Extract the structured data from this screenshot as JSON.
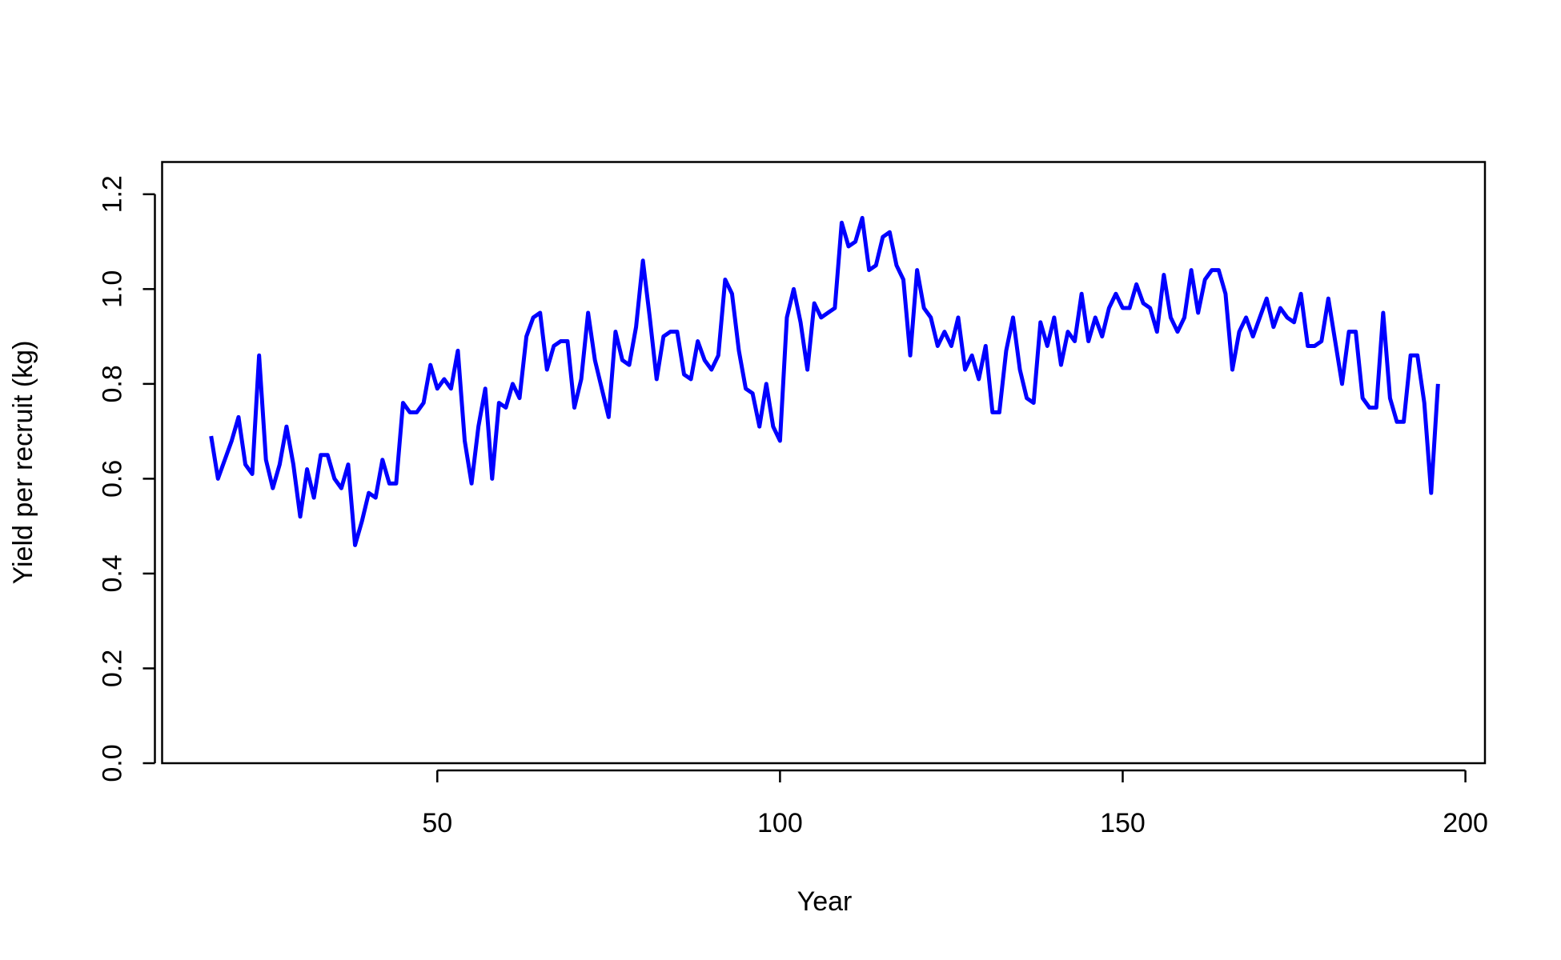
{
  "chart_data": {
    "type": "line",
    "x_label": "Year",
    "y_label": "Yield per recruit (kg)",
    "xlim": [
      9.85,
      202.85
    ],
    "ylim": [
      0,
      1.268
    ],
    "xticks": [
      50,
      100,
      150,
      200
    ],
    "yticks": [
      {
        "value": 0,
        "label": "0.0"
      },
      0.2,
      0.4,
      0.6,
      0.8,
      {
        "value": 1,
        "label": "1.0"
      },
      1.2
    ],
    "x": [
      17,
      18,
      19,
      20,
      21,
      22,
      23,
      24,
      25,
      26,
      27,
      28,
      29,
      30,
      31,
      32,
      33,
      34,
      35,
      36,
      37,
      38,
      39,
      40,
      41,
      42,
      43,
      44,
      45,
      46,
      47,
      48,
      49,
      50,
      51,
      52,
      53,
      54,
      55,
      56,
      57,
      58,
      59,
      60,
      61,
      62,
      63,
      64,
      65,
      66,
      67,
      68,
      69,
      70,
      71,
      72,
      73,
      74,
      75,
      76,
      77,
      78,
      79,
      80,
      81,
      82,
      83,
      84,
      85,
      86,
      87,
      88,
      89,
      90,
      91,
      92,
      93,
      94,
      95,
      96,
      97,
      98,
      99,
      100,
      101,
      102,
      103,
      104,
      105,
      106,
      107,
      108,
      109,
      110,
      111,
      112,
      113,
      114,
      115,
      116,
      117,
      118,
      119,
      120,
      121,
      122,
      123,
      124,
      125,
      126,
      127,
      128,
      129,
      130,
      131,
      132,
      133,
      134,
      135,
      136,
      137,
      138,
      139,
      140,
      141,
      142,
      143,
      144,
      145,
      146,
      147,
      148,
      149,
      150,
      151,
      152,
      153,
      154,
      155,
      156,
      157,
      158,
      159,
      160,
      161,
      162,
      163,
      164,
      165,
      166,
      167,
      168,
      169,
      170,
      171,
      172,
      173,
      174,
      175,
      176,
      177,
      178,
      179,
      180,
      181,
      182,
      183,
      184,
      185,
      186,
      187,
      188,
      189,
      190,
      191,
      192,
      193,
      194,
      195,
      196
    ],
    "series": [
      {
        "color": "#0000ff",
        "values": [
          0.69,
          0.6,
          0.64,
          0.68,
          0.73,
          0.63,
          0.61,
          0.86,
          0.64,
          0.58,
          0.63,
          0.71,
          0.63,
          0.52,
          0.62,
          0.56,
          0.65,
          0.65,
          0.6,
          0.58,
          0.63,
          0.46,
          0.51,
          0.57,
          0.56,
          0.64,
          0.59,
          0.59,
          0.76,
          0.74,
          0.74,
          0.76,
          0.84,
          0.79,
          0.81,
          0.79,
          0.87,
          0.68,
          0.59,
          0.71,
          0.79,
          0.6,
          0.76,
          0.75,
          0.8,
          0.77,
          0.9,
          0.94,
          0.95,
          0.83,
          0.88,
          0.89,
          0.89,
          0.75,
          0.81,
          0.95,
          0.85,
          0.79,
          0.73,
          0.91,
          0.85,
          0.84,
          0.92,
          1.06,
          0.94,
          0.81,
          0.9,
          0.91,
          0.91,
          0.82,
          0.81,
          0.89,
          0.85,
          0.83,
          0.86,
          1.02,
          0.99,
          0.87,
          0.79,
          0.78,
          0.71,
          0.8,
          0.71,
          0.68,
          0.94,
          1.0,
          0.93,
          0.83,
          0.97,
          0.94,
          0.95,
          0.96,
          1.14,
          1.09,
          1.1,
          1.15,
          1.04,
          1.05,
          1.11,
          1.12,
          1.05,
          1.02,
          0.86,
          1.04,
          0.96,
          0.94,
          0.88,
          0.91,
          0.88,
          0.94,
          0.83,
          0.86,
          0.81,
          0.88,
          0.74,
          0.74,
          0.87,
          0.94,
          0.83,
          0.77,
          0.76,
          0.93,
          0.88,
          0.94,
          0.84,
          0.91,
          0.89,
          0.99,
          0.89,
          0.94,
          0.9,
          0.96,
          0.99,
          0.96,
          0.96,
          1.01,
          0.97,
          0.96,
          0.91,
          1.03,
          0.94,
          0.91,
          0.94,
          1.04,
          0.95,
          1.02,
          1.04,
          1.04,
          0.99,
          0.83,
          0.91,
          0.94,
          0.9,
          0.94,
          0.98,
          0.92,
          0.96,
          0.94,
          0.93,
          0.99,
          0.88,
          0.88,
          0.89,
          0.98,
          0.89,
          0.8,
          0.91,
          0.91,
          0.77,
          0.75,
          0.75,
          0.95,
          0.77,
          0.72,
          0.72,
          0.86,
          0.86,
          0.76,
          0.57,
          0.8
        ]
      }
    ]
  }
}
